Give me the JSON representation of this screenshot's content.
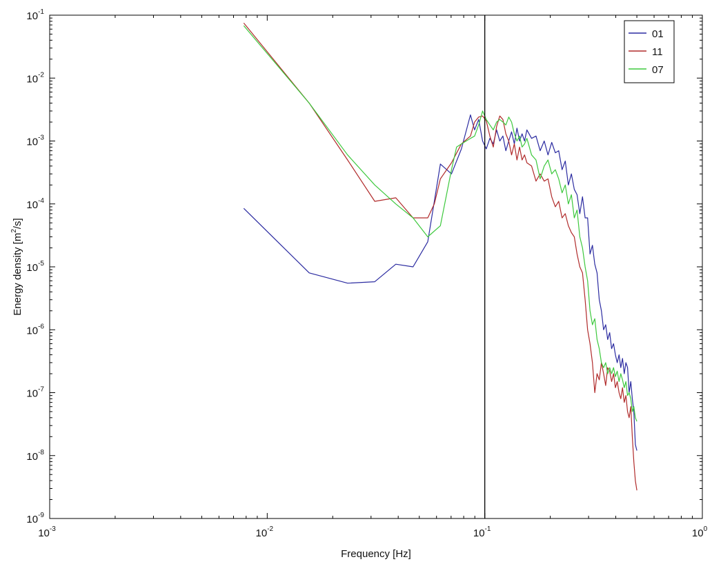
{
  "chart_data": {
    "type": "line",
    "title": "",
    "xlabel": "Frequency [Hz]",
    "ylabel_parts": {
      "pre": "Energy density [m",
      "sup": "2",
      "post": "/s]"
    },
    "xscale": "log",
    "yscale": "log",
    "xlim": [
      0.001,
      1
    ],
    "ylim": [
      1e-09,
      0.1
    ],
    "grid": false,
    "legend_position": "top-right",
    "x_ticks": [
      {
        "base": "10",
        "exp": "-3",
        "value": 0.001
      },
      {
        "base": "10",
        "exp": "-2",
        "value": 0.01
      },
      {
        "base": "10",
        "exp": "-1",
        "value": 0.1
      },
      {
        "base": "10",
        "exp": "0",
        "value": 1
      }
    ],
    "y_ticks": [
      {
        "base": "10",
        "exp": "-9",
        "value": 1e-09
      },
      {
        "base": "10",
        "exp": "-8",
        "value": 1e-08
      },
      {
        "base": "10",
        "exp": "-7",
        "value": 1e-07
      },
      {
        "base": "10",
        "exp": "-6",
        "value": 1e-06
      },
      {
        "base": "10",
        "exp": "-5",
        "value": 1e-05
      },
      {
        "base": "10",
        "exp": "-4",
        "value": 0.0001
      },
      {
        "base": "10",
        "exp": "-3",
        "value": 0.001
      },
      {
        "base": "10",
        "exp": "-2",
        "value": 0.01
      },
      {
        "base": "10",
        "exp": "-1",
        "value": 0.1
      }
    ],
    "vertical_line": {
      "x": 0.1,
      "color": "#000000"
    },
    "series": [
      {
        "name": "01",
        "color": "#2a2aa0",
        "points": [
          [
            0.0078,
            8.5e-05
          ],
          [
            0.0156,
            8e-06
          ],
          [
            0.0234,
            5.5e-06
          ],
          [
            0.0312,
            5.8e-06
          ],
          [
            0.039,
            1.1e-05
          ],
          [
            0.0468,
            1e-05
          ],
          [
            0.0547,
            2.5e-05
          ],
          [
            0.0625,
            0.00043
          ],
          [
            0.0703,
            0.0003
          ],
          [
            0.0781,
            0.00075
          ],
          [
            0.0859,
            0.0026
          ],
          [
            0.0898,
            0.0015
          ],
          [
            0.0937,
            0.0022
          ],
          [
            0.0977,
            0.001
          ],
          [
            0.1016,
            0.00075
          ],
          [
            0.1055,
            0.0011
          ],
          [
            0.1094,
            0.0009
          ],
          [
            0.1133,
            0.0015
          ],
          [
            0.1172,
            0.001
          ],
          [
            0.1211,
            0.0012
          ],
          [
            0.125,
            0.0007
          ],
          [
            0.1289,
            0.001
          ],
          [
            0.1328,
            0.0014
          ],
          [
            0.1367,
            0.0009
          ],
          [
            0.1406,
            0.0016
          ],
          [
            0.1445,
            0.001
          ],
          [
            0.1484,
            0.0013
          ],
          [
            0.1523,
            0.001
          ],
          [
            0.1562,
            0.0015
          ],
          [
            0.1641,
            0.0011
          ],
          [
            0.1719,
            0.0012
          ],
          [
            0.1797,
            0.0007
          ],
          [
            0.1875,
            0.001
          ],
          [
            0.1953,
            0.0006
          ],
          [
            0.2031,
            0.00095
          ],
          [
            0.2109,
            0.00065
          ],
          [
            0.2187,
            0.0007
          ],
          [
            0.2266,
            0.00035
          ],
          [
            0.2344,
            0.00048
          ],
          [
            0.2422,
            0.0002
          ],
          [
            0.25,
            0.0003
          ],
          [
            0.2578,
            0.00017
          ],
          [
            0.2656,
            0.00014
          ],
          [
            0.2734,
            7e-05
          ],
          [
            0.2812,
            0.00013
          ],
          [
            0.2891,
            6e-05
          ],
          [
            0.2969,
            6e-05
          ],
          [
            0.3047,
            1.6e-05
          ],
          [
            0.3125,
            2.2e-05
          ],
          [
            0.3203,
            1.1e-05
          ],
          [
            0.3281,
            8e-06
          ],
          [
            0.3359,
            3e-06
          ],
          [
            0.3437,
            2e-06
          ],
          [
            0.3516,
            1e-06
          ],
          [
            0.3594,
            1.2e-06
          ],
          [
            0.3672,
            7e-07
          ],
          [
            0.375,
            9e-07
          ],
          [
            0.3828,
            5e-07
          ],
          [
            0.3906,
            6e-07
          ],
          [
            0.3984,
            4e-07
          ],
          [
            0.4062,
            3e-07
          ],
          [
            0.4141,
            4e-07
          ],
          [
            0.4219,
            2.5e-07
          ],
          [
            0.4297,
            3.5e-07
          ],
          [
            0.4375,
            2e-07
          ],
          [
            0.4453,
            3e-07
          ],
          [
            0.4531,
            2.5e-07
          ],
          [
            0.4609,
            1e-07
          ],
          [
            0.4688,
            1.5e-07
          ],
          [
            0.4766,
            8e-08
          ],
          [
            0.4844,
            5e-08
          ],
          [
            0.4922,
            1.5e-08
          ],
          [
            0.5,
            1.2e-08
          ]
        ]
      },
      {
        "name": "11",
        "color": "#b02a2a",
        "points": [
          [
            0.0078,
            0.075
          ],
          [
            0.0156,
            0.004
          ],
          [
            0.0234,
            0.0005
          ],
          [
            0.0312,
            0.00011
          ],
          [
            0.039,
            0.000125
          ],
          [
            0.0468,
            6e-05
          ],
          [
            0.0547,
            6e-05
          ],
          [
            0.0586,
            0.0001
          ],
          [
            0.0625,
            0.00025
          ],
          [
            0.0703,
            0.00045
          ],
          [
            0.0781,
            0.0009
          ],
          [
            0.0859,
            0.0012
          ],
          [
            0.0898,
            0.002
          ],
          [
            0.0937,
            0.0024
          ],
          [
            0.0977,
            0.0025
          ],
          [
            0.1016,
            0.0021
          ],
          [
            0.1055,
            0.0012
          ],
          [
            0.1094,
            0.0008
          ],
          [
            0.1133,
            0.0017
          ],
          [
            0.1172,
            0.0025
          ],
          [
            0.1211,
            0.0022
          ],
          [
            0.125,
            0.0013
          ],
          [
            0.1289,
            0.001
          ],
          [
            0.1328,
            0.0006
          ],
          [
            0.1367,
            0.0009
          ],
          [
            0.1406,
            0.0005
          ],
          [
            0.1445,
            0.0008
          ],
          [
            0.1484,
            0.0005
          ],
          [
            0.1523,
            0.0006
          ],
          [
            0.1562,
            0.00045
          ],
          [
            0.1641,
            0.0004
          ],
          [
            0.1719,
            0.00023
          ],
          [
            0.1797,
            0.0003
          ],
          [
            0.1875,
            0.00023
          ],
          [
            0.1953,
            0.00025
          ],
          [
            0.2031,
            0.00013
          ],
          [
            0.2109,
            9e-05
          ],
          [
            0.2187,
            0.00011
          ],
          [
            0.2266,
            6e-05
          ],
          [
            0.2344,
            7e-05
          ],
          [
            0.2422,
            4.5e-05
          ],
          [
            0.25,
            3.5e-05
          ],
          [
            0.2578,
            3e-05
          ],
          [
            0.2656,
            1.6e-05
          ],
          [
            0.2734,
            1e-05
          ],
          [
            0.2812,
            8e-06
          ],
          [
            0.2891,
            3e-06
          ],
          [
            0.2969,
            1e-06
          ],
          [
            0.3047,
            6e-07
          ],
          [
            0.3125,
            3e-07
          ],
          [
            0.3203,
            1e-07
          ],
          [
            0.3281,
            2e-07
          ],
          [
            0.3359,
            1.6e-07
          ],
          [
            0.3437,
            3e-07
          ],
          [
            0.3516,
            2e-07
          ],
          [
            0.3594,
            1.3e-07
          ],
          [
            0.3672,
            2.5e-07
          ],
          [
            0.375,
            2.2e-07
          ],
          [
            0.3828,
            1.5e-07
          ],
          [
            0.3906,
            2e-07
          ],
          [
            0.3984,
            1.2e-07
          ],
          [
            0.4062,
            1.5e-07
          ],
          [
            0.4141,
            1e-07
          ],
          [
            0.4219,
            8e-08
          ],
          [
            0.4297,
            1.2e-07
          ],
          [
            0.4375,
            7e-08
          ],
          [
            0.4453,
            9e-08
          ],
          [
            0.4531,
            5e-08
          ],
          [
            0.4609,
            4e-08
          ],
          [
            0.4688,
            6e-08
          ],
          [
            0.4766,
            2e-08
          ],
          [
            0.4844,
            8e-09
          ],
          [
            0.4922,
            4e-09
          ],
          [
            0.5,
            2.8e-09
          ]
        ]
      },
      {
        "name": "07",
        "color": "#3cc83c",
        "points": [
          [
            0.0078,
            0.068
          ],
          [
            0.0156,
            0.004
          ],
          [
            0.0234,
            0.0006
          ],
          [
            0.0312,
            0.0002
          ],
          [
            0.039,
            0.0001
          ],
          [
            0.0468,
            6e-05
          ],
          [
            0.0547,
            3e-05
          ],
          [
            0.0625,
            4.5e-05
          ],
          [
            0.0703,
            0.00035
          ],
          [
            0.0742,
            0.0008
          ],
          [
            0.0781,
            0.0009
          ],
          [
            0.0859,
            0.0011
          ],
          [
            0.0898,
            0.0012
          ],
          [
            0.0937,
            0.0018
          ],
          [
            0.0977,
            0.003
          ],
          [
            0.1016,
            0.0022
          ],
          [
            0.1055,
            0.0018
          ],
          [
            0.1094,
            0.0015
          ],
          [
            0.1133,
            0.002
          ],
          [
            0.1172,
            0.0022
          ],
          [
            0.1211,
            0.002
          ],
          [
            0.125,
            0.0018
          ],
          [
            0.1289,
            0.0024
          ],
          [
            0.1328,
            0.002
          ],
          [
            0.1367,
            0.0013
          ],
          [
            0.1406,
            0.001
          ],
          [
            0.1445,
            0.0012
          ],
          [
            0.1484,
            0.0008
          ],
          [
            0.1523,
            0.0009
          ],
          [
            0.1562,
            0.0011
          ],
          [
            0.1641,
            0.0006
          ],
          [
            0.1719,
            0.0005
          ],
          [
            0.1797,
            0.00025
          ],
          [
            0.1875,
            0.0004
          ],
          [
            0.1953,
            0.0005
          ],
          [
            0.2031,
            0.0003
          ],
          [
            0.2109,
            0.00035
          ],
          [
            0.2187,
            0.00025
          ],
          [
            0.2266,
            0.00015
          ],
          [
            0.2344,
            0.0002
          ],
          [
            0.2422,
            0.0001
          ],
          [
            0.25,
            0.00014
          ],
          [
            0.2578,
            6e-05
          ],
          [
            0.2656,
            8e-05
          ],
          [
            0.2734,
            3e-05
          ],
          [
            0.2812,
            2e-05
          ],
          [
            0.2891,
            1e-05
          ],
          [
            0.2969,
            6e-06
          ],
          [
            0.3047,
            2e-06
          ],
          [
            0.3125,
            1.2e-06
          ],
          [
            0.3203,
            1.5e-06
          ],
          [
            0.3281,
            7e-07
          ],
          [
            0.3359,
            5e-07
          ],
          [
            0.3437,
            3e-07
          ],
          [
            0.3516,
            2.5e-07
          ],
          [
            0.3594,
            3e-07
          ],
          [
            0.3672,
            2e-07
          ],
          [
            0.375,
            2.5e-07
          ],
          [
            0.3828,
            2e-07
          ],
          [
            0.3906,
            2.5e-07
          ],
          [
            0.3984,
            1.8e-07
          ],
          [
            0.4062,
            2.2e-07
          ],
          [
            0.4141,
            1.5e-07
          ],
          [
            0.4219,
            2e-07
          ],
          [
            0.4297,
            1.6e-07
          ],
          [
            0.4375,
            1.2e-07
          ],
          [
            0.4453,
            1.5e-07
          ],
          [
            0.4531,
            9e-08
          ],
          [
            0.4609,
            1e-07
          ],
          [
            0.4688,
            8e-08
          ],
          [
            0.4766,
            5e-08
          ],
          [
            0.4844,
            6e-08
          ],
          [
            0.4922,
            4e-08
          ],
          [
            0.5,
            3.5e-08
          ]
        ]
      }
    ]
  }
}
